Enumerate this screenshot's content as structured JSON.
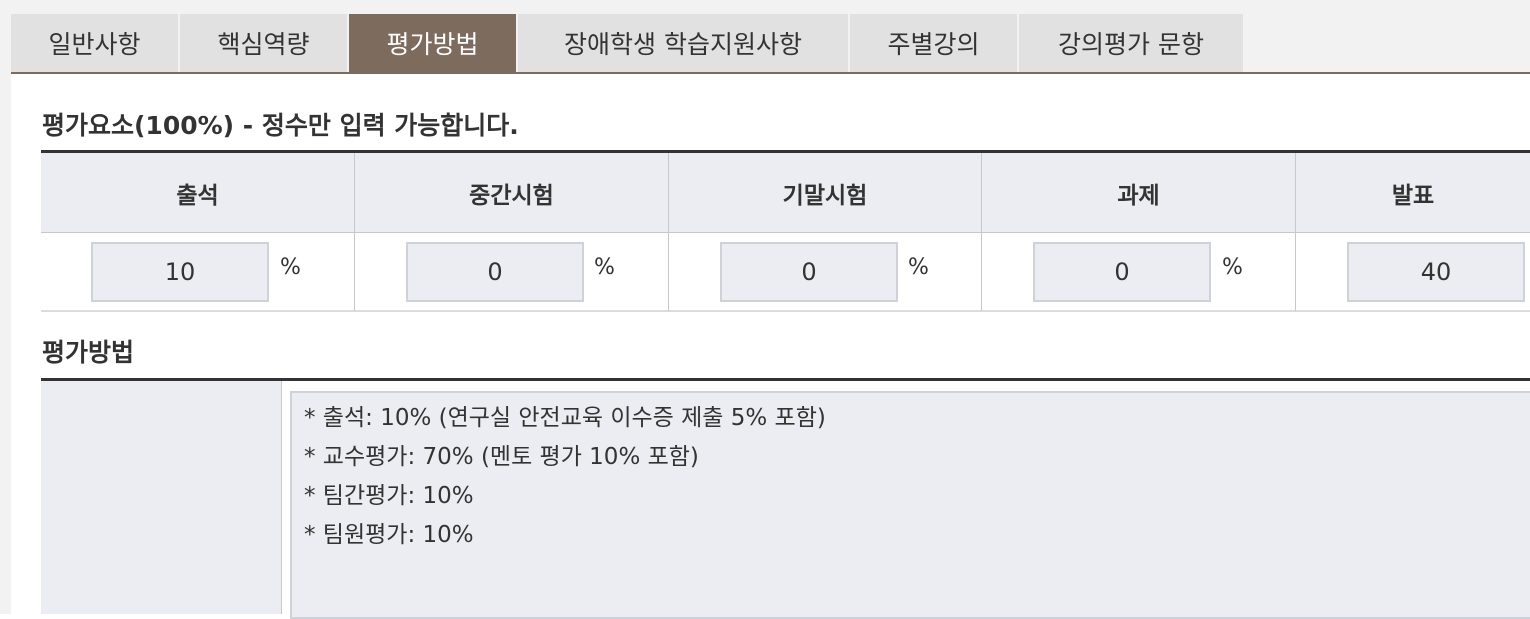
{
  "tabs": [
    {
      "label": "일반사항",
      "active": false
    },
    {
      "label": "핵심역량",
      "active": false
    },
    {
      "label": "평가방법",
      "active": true
    },
    {
      "label": "장애학생 학습지원사항",
      "active": false
    },
    {
      "label": "주별강의",
      "active": false
    },
    {
      "label": "강의평가 문항",
      "active": false
    }
  ],
  "evaluation": {
    "title": "평가요소(100%) - 정수만 입력 가능합니다.",
    "unit": "%",
    "items": [
      {
        "label": "출석",
        "value": "10"
      },
      {
        "label": "중간시험",
        "value": "0"
      },
      {
        "label": "기말시험",
        "value": "0"
      },
      {
        "label": "과제",
        "value": "0"
      },
      {
        "label": "발표",
        "value": "40"
      }
    ]
  },
  "method": {
    "title": "평가방법",
    "lines": [
      "* 출석: 10% (연구실 안전교육 이수증 제출 5% 포함)",
      "* 교수평가: 70% (멘토 평가 10% 포함)",
      "* 팀간평가: 10%",
      "* 팀원평가: 10%"
    ]
  },
  "colors": {
    "tab_active_bg": "#7d6b5d",
    "tab_bg": "#e1e1e1",
    "header_bg": "#ebedf2"
  }
}
